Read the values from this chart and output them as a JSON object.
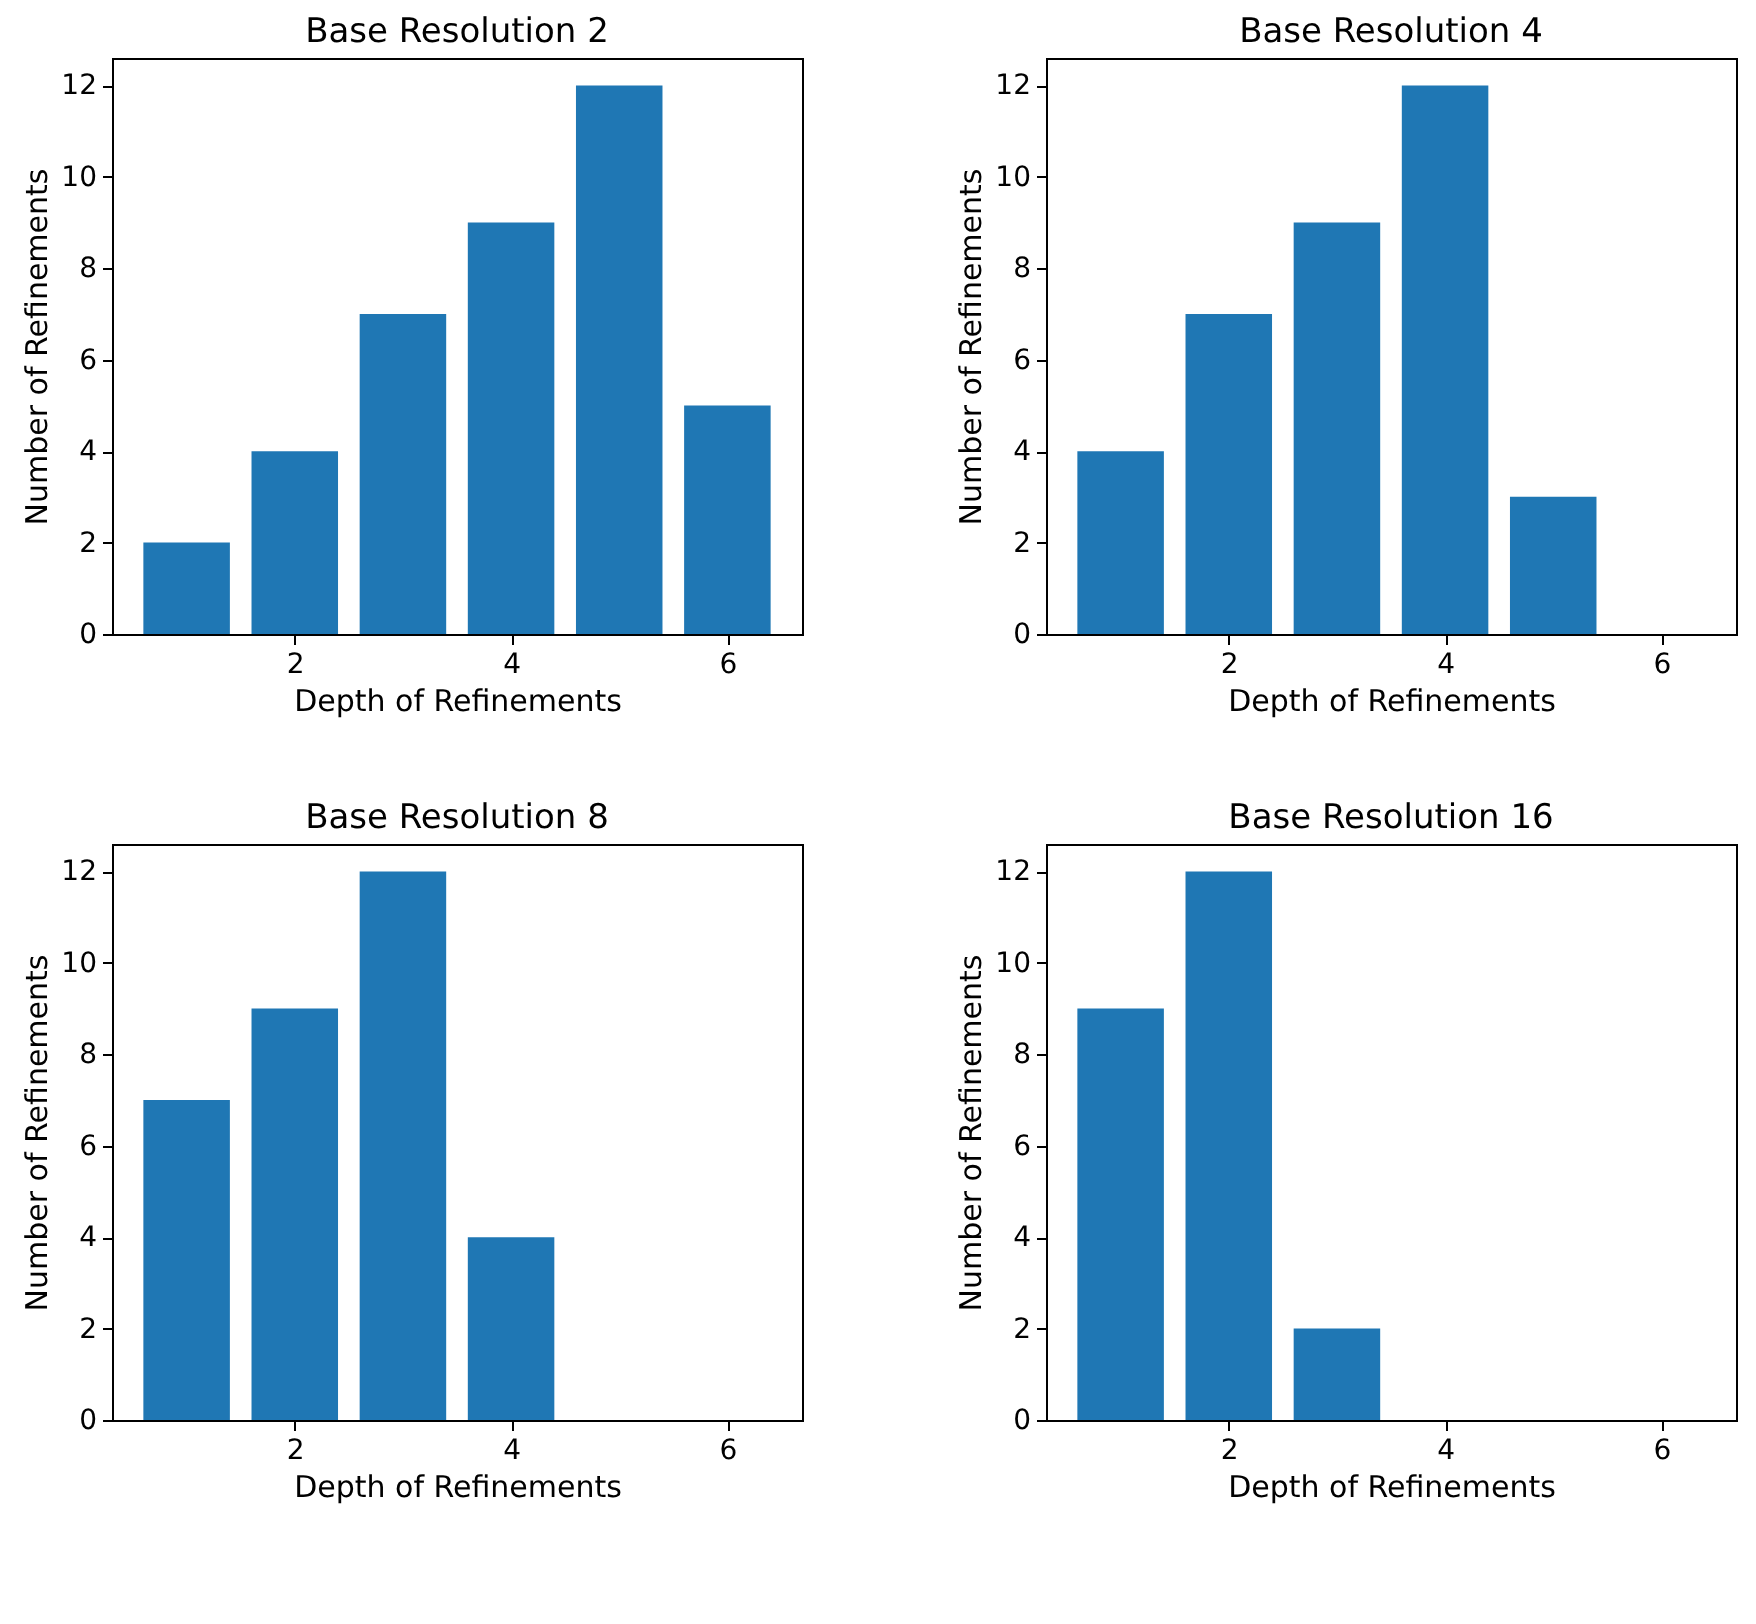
{
  "chart_data": [
    {
      "type": "bar",
      "title": "Base Resolution 2",
      "xlabel": "Depth of Refinements",
      "ylabel": "Number of Refinements",
      "x": [
        1,
        2,
        3,
        4,
        5,
        6
      ],
      "values": [
        2,
        4,
        7,
        9,
        12,
        5
      ],
      "color": "#1f77b4",
      "xlim": [
        0.31,
        6.69
      ],
      "xticks": [
        2,
        4,
        6
      ],
      "ylim": [
        0,
        12.6
      ],
      "yticks": [
        0,
        2,
        4,
        6,
        8,
        10,
        12
      ],
      "grid": false
    },
    {
      "type": "bar",
      "title": "Base Resolution 4",
      "xlabel": "Depth of Refinements",
      "ylabel": "Number of Refinements",
      "x": [
        1,
        2,
        3,
        4,
        5
      ],
      "values": [
        4,
        7,
        9,
        12,
        3
      ],
      "color": "#1f77b4",
      "xlim": [
        0.31,
        6.69
      ],
      "xticks": [
        2,
        4,
        6
      ],
      "ylim": [
        0,
        12.6
      ],
      "yticks": [
        0,
        2,
        4,
        6,
        8,
        10,
        12
      ],
      "grid": false
    },
    {
      "type": "bar",
      "title": "Base Resolution 8",
      "xlabel": "Depth of Refinements",
      "ylabel": "Number of Refinements",
      "x": [
        1,
        2,
        3,
        4
      ],
      "values": [
        7,
        9,
        12,
        4
      ],
      "color": "#1f77b4",
      "xlim": [
        0.31,
        6.69
      ],
      "xticks": [
        2,
        4,
        6
      ],
      "ylim": [
        0,
        12.6
      ],
      "yticks": [
        0,
        2,
        4,
        6,
        8,
        10,
        12
      ],
      "grid": false
    },
    {
      "type": "bar",
      "title": "Base Resolution 16",
      "xlabel": "Depth of Refinements",
      "ylabel": "Number of Refinements",
      "x": [
        1,
        2,
        3
      ],
      "values": [
        9,
        12,
        2
      ],
      "color": "#1f77b4",
      "xlim": [
        0.31,
        6.69
      ],
      "xticks": [
        2,
        4,
        6
      ],
      "ylim": [
        0,
        12.6
      ],
      "yticks": [
        0,
        2,
        4,
        6,
        8,
        10,
        12
      ],
      "grid": false
    }
  ]
}
